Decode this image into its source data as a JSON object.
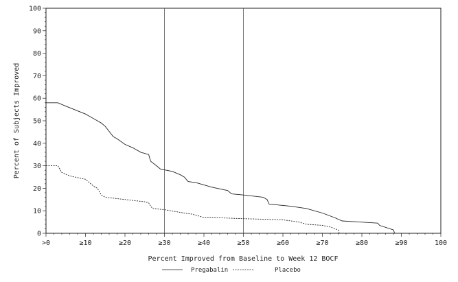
{
  "chart_data": {
    "type": "line",
    "xlabel": "Percent Improved from Baseline to Week 12 BOCF",
    "ylabel": "Percent of Subjects Improved",
    "xlim": [
      0,
      100
    ],
    "ylim": [
      0,
      100
    ],
    "x_tick_values": [
      0,
      10,
      20,
      30,
      40,
      50,
      60,
      70,
      80,
      90,
      100
    ],
    "x_tick_labels": [
      ">0",
      "≥10",
      "≥20",
      "≥30",
      "≥40",
      "≥50",
      "≥60",
      "≥70",
      "≥80",
      "≥90",
      "100"
    ],
    "y_tick_values": [
      0,
      10,
      20,
      30,
      40,
      50,
      60,
      70,
      80,
      90,
      100
    ],
    "y_tick_labels": [
      "0",
      "10",
      "20",
      "30",
      "40",
      "50",
      "60",
      "70",
      "80",
      "90",
      "100"
    ],
    "reference_lines_x": [
      30,
      50
    ],
    "grid": false,
    "legend_position": "bottom",
    "series": [
      {
        "name": "Pregabalin",
        "style": "solid",
        "x": [
          0,
          3,
          5,
          10,
          13,
          14,
          15,
          17,
          18,
          20,
          22,
          24,
          26,
          26.5,
          28,
          29,
          32,
          34,
          35,
          36,
          38,
          42,
          46,
          47,
          50,
          55,
          56,
          56.5,
          62,
          66,
          70,
          73,
          75,
          84,
          84.5,
          88,
          88.3
        ],
        "y": [
          58,
          58,
          56.5,
          53,
          50,
          49,
          47.5,
          43,
          42,
          39.5,
          38,
          36,
          35,
          32,
          30,
          28.5,
          27.5,
          26,
          25,
          23,
          22.5,
          20.5,
          19,
          17.5,
          17,
          16,
          15,
          13,
          12,
          11,
          9,
          7,
          5.5,
          4.5,
          3.5,
          1.5,
          0
        ]
      },
      {
        "name": "Placebo",
        "style": "dashed",
        "x": [
          0,
          3,
          4,
          6,
          10,
          11,
          12,
          13,
          14,
          15,
          20,
          25,
          26,
          26.5,
          27,
          30,
          35,
          37,
          40,
          42,
          50,
          60,
          64,
          66,
          70,
          72,
          74,
          74.3
        ],
        "y": [
          30,
          30,
          27,
          25.5,
          24,
          22.5,
          21,
          20,
          17,
          16,
          15,
          14,
          13.5,
          12,
          11,
          10.5,
          9,
          8.5,
          7,
          7,
          6.5,
          6,
          5,
          4,
          3.5,
          2.8,
          1.5,
          0
        ]
      }
    ]
  }
}
